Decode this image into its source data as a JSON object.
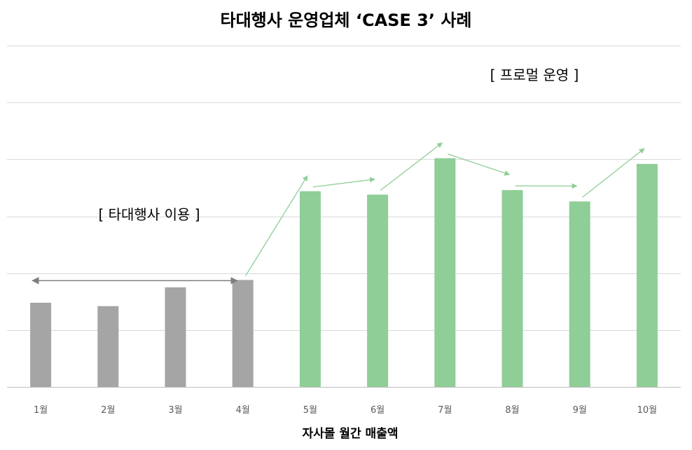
{
  "chart_data": {
    "type": "bar",
    "title": "타대행사 운영업체 ‘CASE 3’ 사례",
    "xlabel": "자사몰 월간 매출액",
    "ylabel": "",
    "categories": [
      "1월",
      "2월",
      "3월",
      "4월",
      "5월",
      "6월",
      "7월",
      "8월",
      "9월",
      "10월"
    ],
    "values": [
      148,
      142,
      175,
      188,
      344,
      338,
      402,
      346,
      326,
      392
    ],
    "ylim": [
      0,
      600
    ],
    "y_gridlines": [
      0,
      100,
      200,
      300,
      400,
      500,
      600
    ],
    "y_tick_labels_shown": false,
    "grid": true,
    "legend": "none",
    "bar_colors": [
      "#a5a5a5",
      "#a5a5a5",
      "#a5a5a5",
      "#a5a5a5",
      "#8fce97",
      "#8fce97",
      "#8fce97",
      "#8fce97",
      "#8fce97",
      "#8fce97"
    ],
    "annotations": [
      {
        "text": "[ 타대행사 이용 ]",
        "period": [
          "1월",
          "4월"
        ],
        "color": "#a5a5a5"
      },
      {
        "text": "[ 프로멀 운영 ]",
        "period": [
          "5월",
          "10월"
        ],
        "color": "#8fce97"
      }
    ]
  },
  "colors": {
    "gray_bar": "#a5a5a5",
    "green_bar": "#8fce97",
    "gray_arrow": "#7f7f7f",
    "green_arrow": "#8fce97"
  }
}
